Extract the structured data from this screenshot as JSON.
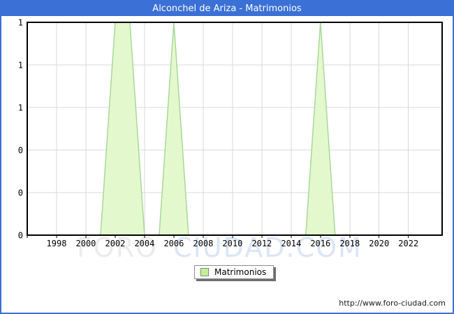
{
  "window": {
    "title": "Alconchel de Ariza - Matrimonios"
  },
  "chart_data": {
    "type": "area",
    "title": "Alconchel de Ariza - Matrimonios",
    "series_name": "Matrimonios",
    "x": [
      1996,
      1997,
      1998,
      1999,
      2000,
      2001,
      2002,
      2003,
      2004,
      2005,
      2006,
      2007,
      2008,
      2009,
      2010,
      2011,
      2012,
      2013,
      2014,
      2015,
      2016,
      2017,
      2018,
      2019,
      2020,
      2021,
      2022,
      2023
    ],
    "values": [
      0,
      0,
      0,
      0,
      0,
      0,
      1,
      1,
      0,
      0,
      1,
      0,
      0,
      0,
      0,
      0,
      0,
      0,
      0,
      0,
      1,
      0,
      0,
      0,
      0,
      0,
      0,
      0
    ],
    "x_ticks": [
      1998,
      2000,
      2002,
      2004,
      2006,
      2008,
      2010,
      2012,
      2014,
      2016,
      2018,
      2020,
      2022
    ],
    "y_ticks": [
      {
        "value": 1.0,
        "label": "1"
      },
      {
        "value": 0.8,
        "label": "1"
      },
      {
        "value": 0.6,
        "label": "1"
      },
      {
        "value": 0.4,
        "label": "0"
      },
      {
        "value": 0.2,
        "label": "0"
      },
      {
        "value": 0.0,
        "label": "0"
      }
    ],
    "xlim": [
      1996,
      2024.3
    ],
    "ylim": [
      0,
      1
    ],
    "grid": true,
    "legend_position": "bottom-center",
    "colors": {
      "area_fill": "#e4f8cd",
      "area_stroke": "#a8d898",
      "grid": "#d9d9d9",
      "plot_border": "#000000",
      "titlebar": "#3b70d6",
      "legend_swatch": "#c4ef9c"
    }
  },
  "legend": {
    "label": "Matrimonios"
  },
  "watermark": {
    "part1": "FORO",
    "part2": "CIUDAD.COM"
  },
  "footer": {
    "url": "http://www.foro-ciudad.com"
  }
}
